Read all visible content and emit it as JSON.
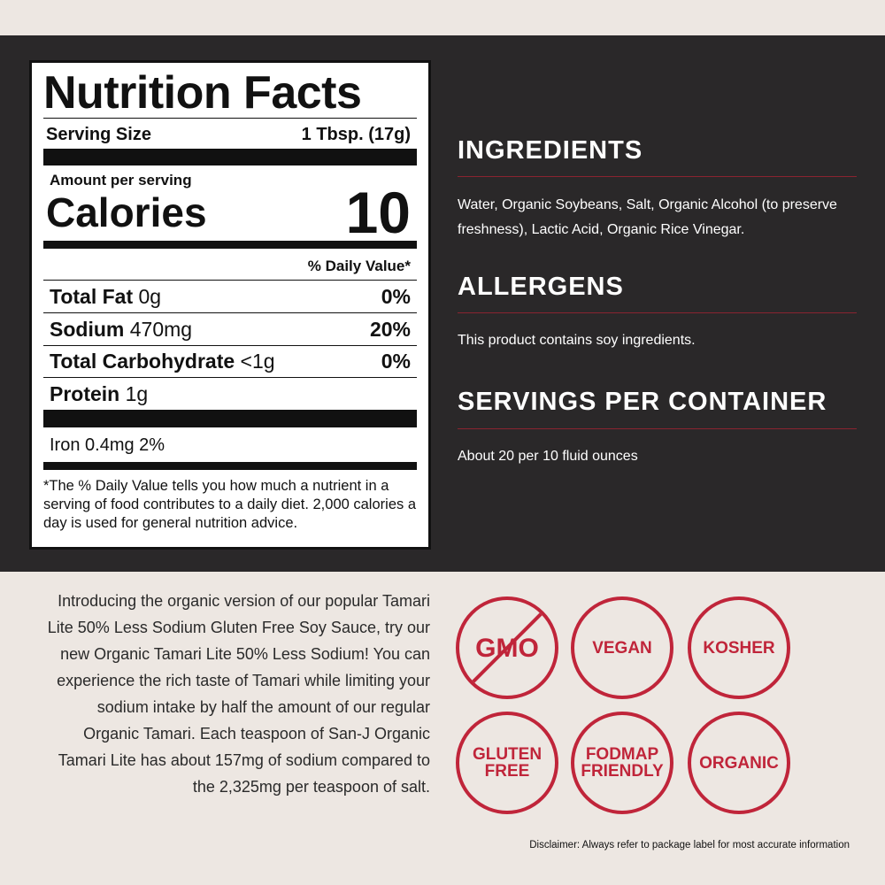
{
  "nutrition": {
    "title": "Nutrition Facts",
    "serving_size_label": "Serving Size",
    "serving_size_value": "1 Tbsp. (17g)",
    "amount_per_serving": "Amount per serving",
    "calories_label": "Calories",
    "calories_value": "10",
    "daily_value_header": "% Daily Value*",
    "rows": [
      {
        "name": "Total Fat",
        "amount": "0g",
        "dv": "0%"
      },
      {
        "name": "Sodium",
        "amount": "470mg",
        "dv": "20%"
      },
      {
        "name": "Total Carbohydrate",
        "amount": "<1g",
        "dv": "0%"
      },
      {
        "name": "Protein",
        "amount": "1g",
        "dv": ""
      }
    ],
    "iron": "Iron 0.4mg 2%",
    "footnote": "*The % Daily Value tells you how much a nutrient in a serving of food contributes to a daily diet. 2,000 calories a day is used for general nutrition advice."
  },
  "ingredients": {
    "heading": "INGREDIENTS",
    "text": "Water, Organic Soybeans, Salt, Organic Alcohol (to preserve freshness), Lactic Acid, Organic Rice Vinegar."
  },
  "allergens": {
    "heading": "ALLERGENS",
    "text": "This product contains soy ingredients."
  },
  "servings": {
    "heading": "SERVINGS PER CONTAINER",
    "text": "About 20 per 10 fluid ounces"
  },
  "description": "Introducing the organic version of our popular Tamari Lite 50% Less Sodium Gluten Free Soy Sauce, try our new Organic Tamari Lite 50% Less Sodium! You can experience the rich taste of Tamari while limiting your sodium intake by half the amount of our regular Organic Tamari. Each teaspoon of San-J Organic Tamari Lite has about 157mg of sodium compared to the 2,325mg per teaspoon of salt.",
  "badges": [
    {
      "l1": "GMO",
      "l2": "",
      "icon": "no-gmo-icon"
    },
    {
      "l1": "VEGAN",
      "l2": "",
      "icon": "vegan-icon"
    },
    {
      "l1": "KOSHER",
      "l2": "",
      "icon": "kosher-icon"
    },
    {
      "l1": "GLUTEN",
      "l2": "FREE",
      "icon": "gluten-free-icon"
    },
    {
      "l1": "FODMAP",
      "l2": "FRIENDLY",
      "icon": "fodmap-friendly-icon"
    },
    {
      "l1": "ORGANIC",
      "l2": "",
      "icon": "organic-icon"
    }
  ],
  "disclaimer": "Disclaimer: Always refer to package label for most accurate information",
  "colors": {
    "dark": "#2a2829",
    "beige": "#ede7e2",
    "red": "#c0253a"
  }
}
